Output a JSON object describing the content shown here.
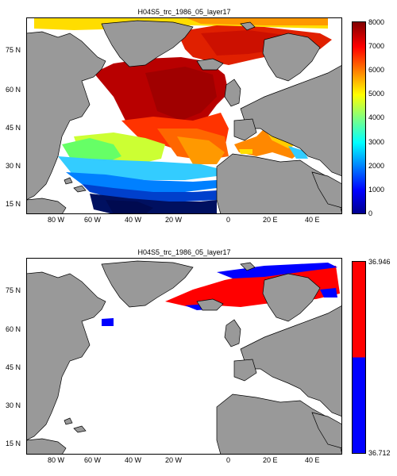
{
  "panels": [
    {
      "title": "H04S5_trc_1986_05_layer17",
      "lat_labels": [
        "75 N",
        "60 N",
        "45 N",
        "30 N",
        "15 N"
      ],
      "lon_labels": [
        "80 W",
        "60 W",
        "40 W",
        "20 W",
        "0",
        "20 E",
        "40 E"
      ],
      "colorbar": {
        "type": "jet",
        "ticks": [
          "8000",
          "7000",
          "6000",
          "5000",
          "4000",
          "3000",
          "2000",
          "1000",
          "0"
        ],
        "min": 0,
        "max": 8000
      },
      "colors": {
        "land": "#999999",
        "nodata": "#ffffff"
      }
    },
    {
      "title": "H04S5_trc_1986_05_layer17",
      "lat_labels": [
        "75 N",
        "60 N",
        "45 N",
        "30 N",
        "15 N"
      ],
      "lon_labels": [
        "80 W",
        "60 W",
        "40 W",
        "20 W",
        "0",
        "20 E",
        "40 E"
      ],
      "colorbar": {
        "type": "binary",
        "ticks": [
          "36.946",
          "36.712"
        ],
        "colors": [
          "#ff0000",
          "#0000ff"
        ]
      },
      "colors": {
        "land": "#999999",
        "nodata": "#ffffff"
      }
    }
  ]
}
